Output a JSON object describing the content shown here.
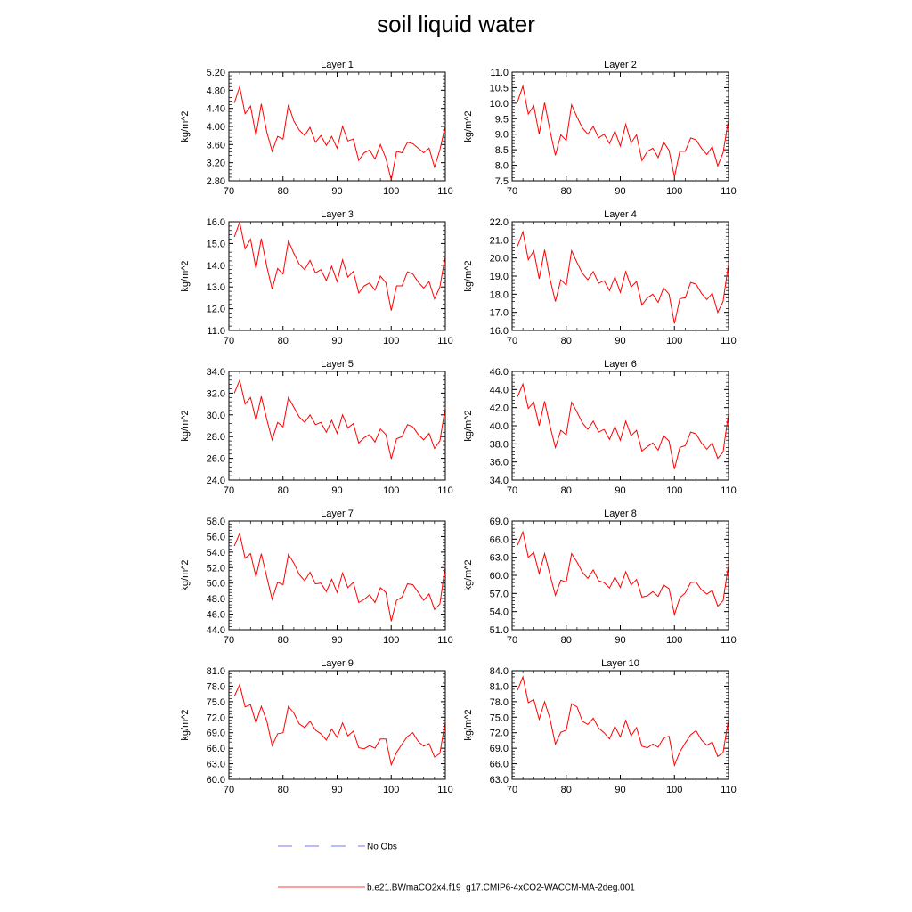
{
  "title": "soil liquid water",
  "legend": {
    "obs_label": "No Obs",
    "model_label": "b.e21.BWmaCO2x4.f19_g17.CMIP6-4xCO2-WACCM-MA-2deg.001",
    "model_color": "#ff0000",
    "obs_color": "#4a4aff"
  },
  "chart_data": [
    {
      "type": "line",
      "title": "Layer 1",
      "ylabel": "kg/m^2",
      "xlim": [
        70,
        110
      ],
      "ylim": [
        2.8,
        5.2
      ],
      "xticks": [
        "70",
        "80",
        "90",
        "100",
        "110"
      ],
      "yticks": [
        "2.80",
        "3.20",
        "3.60",
        "4.00",
        "4.40",
        "4.80",
        "5.20"
      ],
      "x": [
        71,
        72,
        73,
        74,
        75,
        76,
        77,
        78,
        79,
        80,
        81,
        82,
        83,
        84,
        85,
        86,
        87,
        88,
        89,
        90,
        91,
        92,
        93,
        94,
        95,
        96,
        97,
        98,
        99,
        100,
        101,
        102,
        103,
        104,
        105,
        106,
        107,
        108,
        109,
        110
      ],
      "series": [
        {
          "name": "b.e21.BWmaCO2x4.f19_g17.CMIP6-4xCO2-WACCM-MA-2deg.001",
          "values": [
            4.52,
            4.88,
            4.28,
            4.45,
            3.8,
            4.5,
            3.88,
            3.45,
            3.78,
            3.72,
            4.48,
            4.12,
            3.92,
            3.8,
            3.98,
            3.65,
            3.8,
            3.58,
            3.78,
            3.52,
            4.0,
            3.68,
            3.72,
            3.25,
            3.42,
            3.48,
            3.28,
            3.6,
            3.3,
            2.82,
            3.45,
            3.42,
            3.65,
            3.62,
            3.52,
            3.42,
            3.52,
            3.1,
            3.48,
            4.02
          ]
        }
      ]
    },
    {
      "type": "line",
      "title": "Layer 2",
      "ylabel": "kg/m^2",
      "xlim": [
        70,
        110
      ],
      "ylim": [
        7.5,
        11.0
      ],
      "xticks": [
        "70",
        "80",
        "90",
        "100",
        "110"
      ],
      "yticks": [
        "7.5",
        "8.0",
        "8.5",
        "9.0",
        "9.5",
        "10.0",
        "10.5",
        "11.0"
      ],
      "x": [
        71,
        72,
        73,
        74,
        75,
        76,
        77,
        78,
        79,
        80,
        81,
        82,
        83,
        84,
        85,
        86,
        87,
        88,
        89,
        90,
        91,
        92,
        93,
        94,
        95,
        96,
        97,
        98,
        99,
        100,
        101,
        102,
        103,
        104,
        105,
        106,
        107,
        108,
        109,
        110
      ],
      "series": [
        {
          "name": "b.e21.BWmaCO2x4.f19_g17.CMIP6-4xCO2-WACCM-MA-2deg.001",
          "values": [
            10.05,
            10.55,
            9.65,
            9.92,
            9.0,
            10.02,
            9.12,
            8.32,
            8.98,
            8.8,
            9.95,
            9.55,
            9.2,
            9.0,
            9.25,
            8.88,
            9.0,
            8.7,
            9.1,
            8.62,
            9.32,
            8.72,
            8.98,
            8.15,
            8.45,
            8.55,
            8.25,
            8.75,
            8.48,
            7.62,
            8.45,
            8.45,
            8.88,
            8.82,
            8.55,
            8.35,
            8.6,
            7.98,
            8.4,
            9.48
          ]
        }
      ]
    },
    {
      "type": "line",
      "title": "Layer 3",
      "ylabel": "kg/m^2",
      "xlim": [
        70,
        110
      ],
      "ylim": [
        11.0,
        16.0
      ],
      "xticks": [
        "70",
        "80",
        "90",
        "100",
        "110"
      ],
      "yticks": [
        "11.0",
        "12.0",
        "13.0",
        "14.0",
        "15.0",
        "16.0"
      ],
      "x": [
        71,
        72,
        73,
        74,
        75,
        76,
        77,
        78,
        79,
        80,
        81,
        82,
        83,
        84,
        85,
        86,
        87,
        88,
        89,
        90,
        91,
        92,
        93,
        94,
        95,
        96,
        97,
        98,
        99,
        100,
        101,
        102,
        103,
        104,
        105,
        106,
        107,
        108,
        109,
        110
      ],
      "series": [
        {
          "name": "b.e21.BWmaCO2x4.f19_g17.CMIP6-4xCO2-WACCM-MA-2deg.001",
          "values": [
            15.3,
            15.98,
            14.75,
            15.2,
            13.85,
            15.22,
            13.95,
            12.9,
            13.85,
            13.6,
            15.12,
            14.55,
            14.05,
            13.8,
            14.22,
            13.65,
            13.8,
            13.3,
            13.95,
            13.25,
            14.25,
            13.45,
            13.72,
            12.72,
            13.05,
            13.18,
            12.85,
            13.5,
            13.2,
            11.92,
            13.05,
            13.05,
            13.7,
            13.6,
            13.22,
            12.95,
            13.25,
            12.45,
            13.0,
            14.45
          ]
        }
      ]
    },
    {
      "type": "line",
      "title": "Layer 4",
      "ylabel": "kg/m^2",
      "xlim": [
        70,
        110
      ],
      "ylim": [
        16.0,
        22.0
      ],
      "xticks": [
        "70",
        "80",
        "90",
        "100",
        "110"
      ],
      "yticks": [
        "16.0",
        "17.0",
        "18.0",
        "19.0",
        "20.0",
        "21.0",
        "22.0"
      ],
      "x": [
        71,
        72,
        73,
        74,
        75,
        76,
        77,
        78,
        79,
        80,
        81,
        82,
        83,
        84,
        85,
        86,
        87,
        88,
        89,
        90,
        91,
        92,
        93,
        94,
        95,
        96,
        97,
        98,
        99,
        100,
        101,
        102,
        103,
        104,
        105,
        106,
        107,
        108,
        109,
        110
      ],
      "series": [
        {
          "name": "b.e21.BWmaCO2x4.f19_g17.CMIP6-4xCO2-WACCM-MA-2deg.001",
          "values": [
            20.65,
            21.45,
            19.9,
            20.4,
            18.85,
            20.45,
            18.85,
            17.6,
            18.8,
            18.5,
            20.4,
            19.75,
            19.15,
            18.8,
            19.25,
            18.6,
            18.75,
            18.2,
            18.95,
            18.1,
            19.25,
            18.4,
            18.7,
            17.4,
            17.8,
            18.0,
            17.55,
            18.35,
            18.0,
            16.38,
            17.75,
            17.8,
            18.65,
            18.55,
            18.05,
            17.7,
            18.05,
            17.0,
            17.6,
            19.7
          ]
        }
      ]
    },
    {
      "type": "line",
      "title": "Layer 5",
      "ylabel": "kg/m^2",
      "xlim": [
        70,
        110
      ],
      "ylim": [
        24.0,
        34.0
      ],
      "xticks": [
        "70",
        "80",
        "90",
        "100",
        "110"
      ],
      "yticks": [
        "24.0",
        "26.0",
        "28.0",
        "30.0",
        "32.0",
        "34.0"
      ],
      "x": [
        71,
        72,
        73,
        74,
        75,
        76,
        77,
        78,
        79,
        80,
        81,
        82,
        83,
        84,
        85,
        86,
        87,
        88,
        89,
        90,
        91,
        92,
        93,
        94,
        95,
        96,
        97,
        98,
        99,
        100,
        101,
        102,
        103,
        104,
        105,
        106,
        107,
        108,
        109,
        110
      ],
      "series": [
        {
          "name": "b.e21.BWmaCO2x4.f19_g17.CMIP6-4xCO2-WACCM-MA-2deg.001",
          "values": [
            32.0,
            33.2,
            31.0,
            31.6,
            29.5,
            31.7,
            29.6,
            27.7,
            29.3,
            28.9,
            31.6,
            30.7,
            29.8,
            29.3,
            30.0,
            29.1,
            29.3,
            28.4,
            29.5,
            28.3,
            30.0,
            28.8,
            29.2,
            27.4,
            27.9,
            28.2,
            27.5,
            28.7,
            28.2,
            25.95,
            27.8,
            28.0,
            29.1,
            28.9,
            28.2,
            27.7,
            28.3,
            26.9,
            27.6,
            30.7
          ]
        }
      ]
    },
    {
      "type": "line",
      "title": "Layer 6",
      "ylabel": "kg/m^2",
      "xlim": [
        70,
        110
      ],
      "ylim": [
        34.0,
        46.0
      ],
      "xticks": [
        "70",
        "80",
        "90",
        "100",
        "110"
      ],
      "yticks": [
        "34.0",
        "36.0",
        "38.0",
        "40.0",
        "42.0",
        "44.0",
        "46.0"
      ],
      "x": [
        71,
        72,
        73,
        74,
        75,
        76,
        77,
        78,
        79,
        80,
        81,
        82,
        83,
        84,
        85,
        86,
        87,
        88,
        89,
        90,
        91,
        92,
        93,
        94,
        95,
        96,
        97,
        98,
        99,
        100,
        101,
        102,
        103,
        104,
        105,
        106,
        107,
        108,
        109,
        110
      ],
      "series": [
        {
          "name": "b.e21.BWmaCO2x4.f19_g17.CMIP6-4xCO2-WACCM-MA-2deg.001",
          "values": [
            43.2,
            44.6,
            41.9,
            42.6,
            40.0,
            42.7,
            40.0,
            37.6,
            39.5,
            39.0,
            42.6,
            41.5,
            40.3,
            39.6,
            40.5,
            39.3,
            39.6,
            38.5,
            39.9,
            38.4,
            40.5,
            38.9,
            39.5,
            37.2,
            37.7,
            38.1,
            37.3,
            38.9,
            38.3,
            35.2,
            37.6,
            37.8,
            39.3,
            39.1,
            38.1,
            37.4,
            38.1,
            36.4,
            37.1,
            41.4
          ]
        }
      ]
    },
    {
      "type": "line",
      "title": "Layer 7",
      "ylabel": "kg/m^2",
      "xlim": [
        70,
        110
      ],
      "ylim": [
        44.0,
        58.0
      ],
      "xticks": [
        "70",
        "80",
        "90",
        "100",
        "110"
      ],
      "yticks": [
        "44.0",
        "46.0",
        "48.0",
        "50.0",
        "52.0",
        "54.0",
        "56.0",
        "58.0"
      ],
      "x": [
        71,
        72,
        73,
        74,
        75,
        76,
        77,
        78,
        79,
        80,
        81,
        82,
        83,
        84,
        85,
        86,
        87,
        88,
        89,
        90,
        91,
        92,
        93,
        94,
        95,
        96,
        97,
        98,
        99,
        100,
        101,
        102,
        103,
        104,
        105,
        106,
        107,
        108,
        109,
        110
      ],
      "series": [
        {
          "name": "b.e21.BWmaCO2x4.f19_g17.CMIP6-4xCO2-WACCM-MA-2deg.001",
          "values": [
            54.8,
            56.4,
            53.2,
            53.8,
            50.8,
            53.8,
            50.8,
            47.9,
            50.1,
            49.8,
            53.7,
            52.6,
            51.1,
            50.3,
            51.4,
            49.9,
            50.0,
            48.9,
            50.5,
            48.8,
            51.3,
            49.4,
            50.1,
            47.5,
            47.9,
            48.5,
            47.5,
            49.4,
            48.8,
            45.1,
            47.8,
            48.2,
            49.9,
            49.8,
            48.8,
            47.8,
            48.6,
            46.6,
            47.3,
            52.2
          ]
        }
      ]
    },
    {
      "type": "line",
      "title": "Layer 8",
      "ylabel": "kg/m^2",
      "xlim": [
        70,
        110
      ],
      "ylim": [
        51.0,
        69.0
      ],
      "xticks": [
        "70",
        "80",
        "90",
        "100",
        "110"
      ],
      "yticks": [
        "51.0",
        "54.0",
        "57.0",
        "60.0",
        "63.0",
        "66.0",
        "69.0"
      ],
      "x": [
        71,
        72,
        73,
        74,
        75,
        76,
        77,
        78,
        79,
        80,
        81,
        82,
        83,
        84,
        85,
        86,
        87,
        88,
        89,
        90,
        91,
        92,
        93,
        94,
        95,
        96,
        97,
        98,
        99,
        100,
        101,
        102,
        103,
        104,
        105,
        106,
        107,
        108,
        109,
        110
      ],
      "series": [
        {
          "name": "b.e21.BWmaCO2x4.f19_g17.CMIP6-4xCO2-WACCM-MA-2deg.001",
          "values": [
            65.0,
            67.2,
            63.0,
            63.8,
            60.3,
            63.6,
            60.1,
            56.7,
            59.2,
            58.9,
            63.6,
            62.2,
            60.5,
            59.5,
            60.9,
            59.1,
            58.8,
            57.9,
            59.7,
            58.0,
            60.6,
            58.4,
            59.3,
            56.4,
            56.6,
            57.3,
            56.5,
            58.4,
            57.8,
            53.5,
            56.3,
            57.1,
            58.8,
            58.9,
            57.6,
            56.9,
            57.5,
            54.9,
            55.8,
            61.8
          ]
        }
      ]
    },
    {
      "type": "line",
      "title": "Layer 9",
      "ylabel": "kg/m^2",
      "xlim": [
        70,
        110
      ],
      "ylim": [
        60.0,
        81.0
      ],
      "xticks": [
        "70",
        "80",
        "90",
        "100",
        "110"
      ],
      "yticks": [
        "60.0",
        "63.0",
        "66.0",
        "69.0",
        "72.0",
        "75.0",
        "78.0",
        "81.0"
      ],
      "x": [
        71,
        72,
        73,
        74,
        75,
        76,
        77,
        78,
        79,
        80,
        81,
        82,
        83,
        84,
        85,
        86,
        87,
        88,
        89,
        90,
        91,
        92,
        93,
        94,
        95,
        96,
        97,
        98,
        99,
        100,
        101,
        102,
        103,
        104,
        105,
        106,
        107,
        108,
        109,
        110
      ],
      "series": [
        {
          "name": "b.e21.BWmaCO2x4.f19_g17.CMIP6-4xCO2-WACCM-MA-2deg.001",
          "values": [
            76.0,
            78.3,
            74.0,
            74.4,
            70.9,
            74.1,
            71.3,
            66.5,
            68.8,
            69.0,
            74.1,
            72.8,
            70.7,
            70.0,
            71.2,
            69.5,
            68.8,
            67.6,
            69.7,
            68.1,
            70.9,
            68.4,
            69.3,
            66.1,
            65.9,
            66.5,
            66.0,
            67.8,
            67.8,
            62.8,
            65.2,
            66.8,
            68.3,
            69.0,
            67.3,
            66.4,
            66.9,
            64.3,
            65.0,
            71.3
          ]
        }
      ]
    },
    {
      "type": "line",
      "title": "Layer 10",
      "ylabel": "kg/m^2",
      "xlim": [
        70,
        110
      ],
      "ylim": [
        63.0,
        84.0
      ],
      "xticks": [
        "70",
        "80",
        "90",
        "100",
        "110"
      ],
      "yticks": [
        "63.0",
        "66.0",
        "69.0",
        "72.0",
        "75.0",
        "78.0",
        "81.0",
        "84.0"
      ],
      "x": [
        71,
        72,
        73,
        74,
        75,
        76,
        77,
        78,
        79,
        80,
        81,
        82,
        83,
        84,
        85,
        86,
        87,
        88,
        89,
        90,
        91,
        92,
        93,
        94,
        95,
        96,
        97,
        98,
        99,
        100,
        101,
        102,
        103,
        104,
        105,
        106,
        107,
        108,
        109,
        110
      ],
      "series": [
        {
          "name": "b.e21.BWmaCO2x4.f19_g17.CMIP6-4xCO2-WACCM-MA-2deg.001",
          "values": [
            80.2,
            82.8,
            77.8,
            78.4,
            74.6,
            78.0,
            74.7,
            69.8,
            72.1,
            72.5,
            77.6,
            77.0,
            74.2,
            73.6,
            74.8,
            72.9,
            72.0,
            70.8,
            73.2,
            71.2,
            74.4,
            71.4,
            73.0,
            69.4,
            69.1,
            69.8,
            69.2,
            71.0,
            71.3,
            65.7,
            68.3,
            70.0,
            71.6,
            72.4,
            70.6,
            69.6,
            70.2,
            67.4,
            68.2,
            74.6
          ]
        }
      ]
    }
  ]
}
